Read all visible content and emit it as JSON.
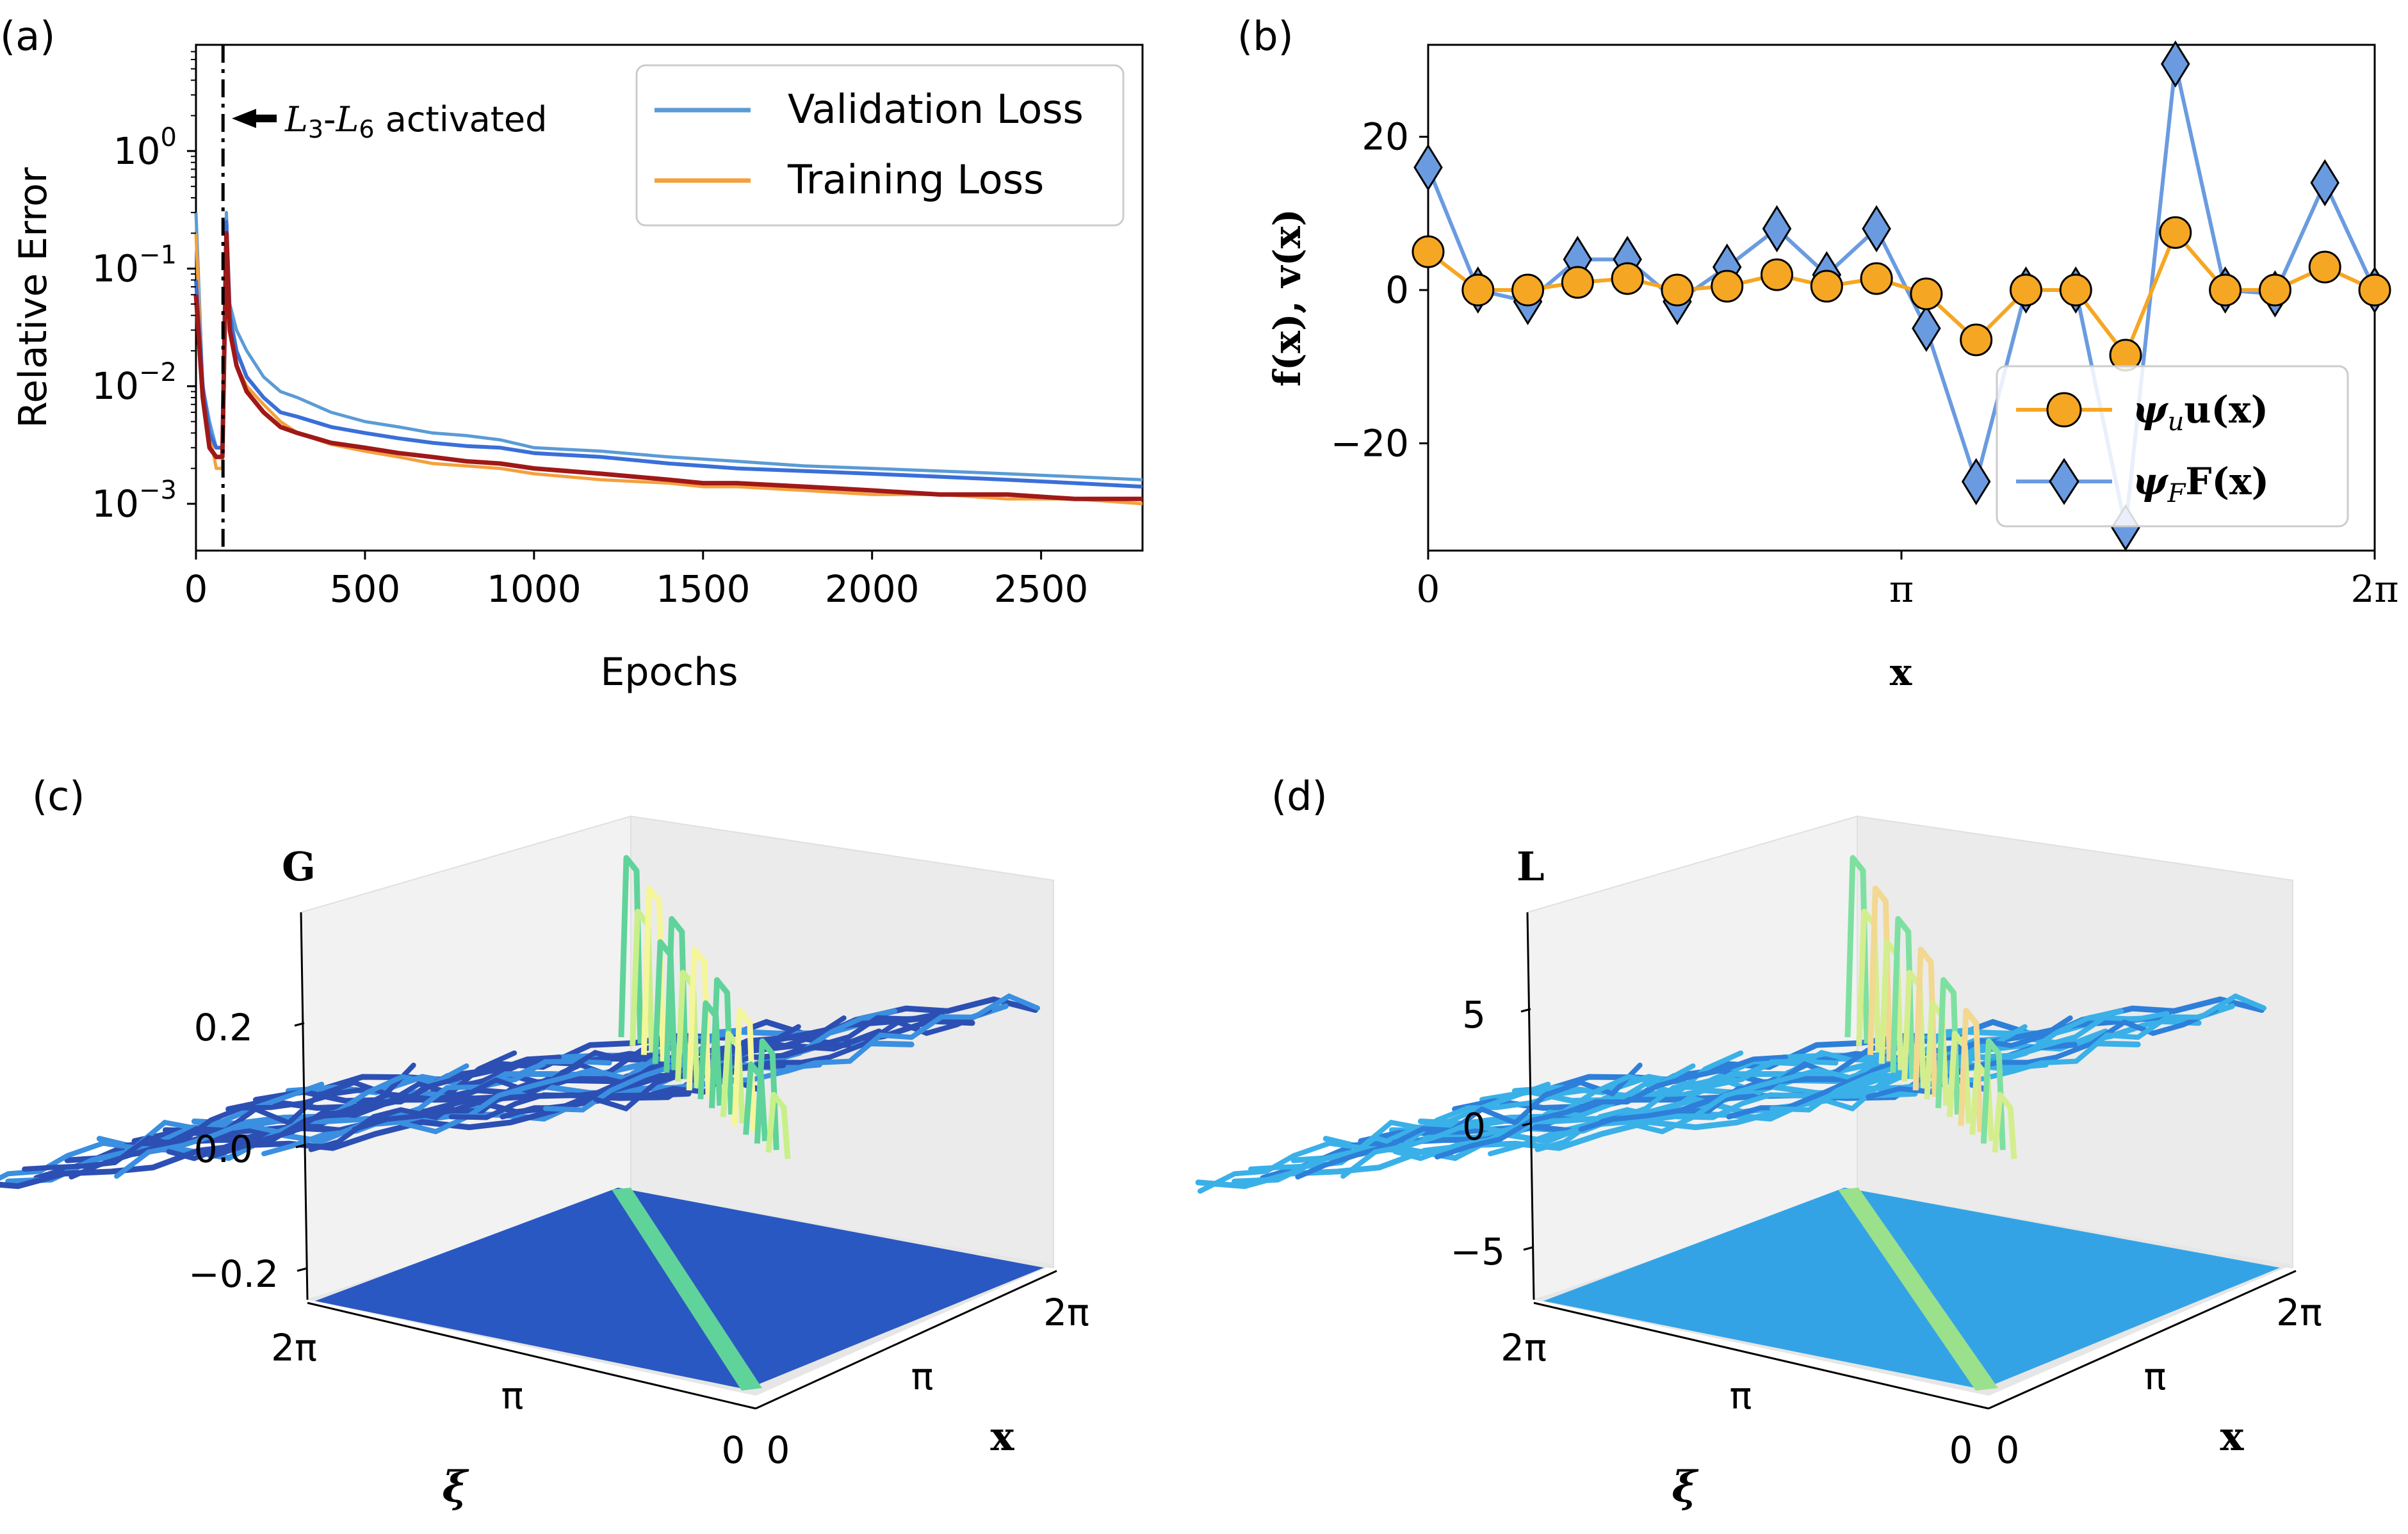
{
  "chart_data": [
    {
      "panel": "(a)",
      "type": "line",
      "xlabel": "Epochs",
      "ylabel": "Relative Error",
      "y_scale": "log",
      "xlim": [
        0,
        2800
      ],
      "ylim": [
        0.0004,
        8
      ],
      "x_ticks": [
        0,
        500,
        1000,
        1500,
        2000,
        2500
      ],
      "y_ticks": [
        {
          "value": 1,
          "label_base": "10",
          "label_exp": "0"
        },
        {
          "value": 0.1,
          "label_base": "10",
          "label_exp": "−1"
        },
        {
          "value": 0.01,
          "label_base": "10",
          "label_exp": "−2"
        },
        {
          "value": 0.001,
          "label_base": "10",
          "label_exp": "−3"
        }
      ],
      "legend_position": "top-right",
      "grid": false,
      "annotation": {
        "text_pre": "L",
        "sub1": "3",
        "dash": "-",
        "text_mid": "L",
        "sub2": "6",
        "text_post": " activated",
        "x": 80
      },
      "vline_x": 80,
      "series": [
        {
          "name": "Validation Loss",
          "color": "#5b9bd5",
          "x": [
            0,
            20,
            40,
            60,
            78,
            90,
            100,
            120,
            150,
            200,
            250,
            300,
            400,
            500,
            600,
            700,
            800,
            900,
            1000,
            1200,
            1400,
            1500,
            1600,
            1800,
            2000,
            2200,
            2400,
            2600,
            2800
          ],
          "values": [
            0.3,
            0.01,
            0.005,
            0.003,
            0.003,
            0.3,
            0.05,
            0.03,
            0.02,
            0.012,
            0.009,
            0.008,
            0.006,
            0.005,
            0.0045,
            0.004,
            0.0038,
            0.0035,
            0.003,
            0.0028,
            0.0025,
            0.0024,
            0.0023,
            0.0021,
            0.002,
            0.0019,
            0.0018,
            0.0017,
            0.0016
          ]
        },
        {
          "name": "Training Loss",
          "color": "#f5a03c",
          "x": [
            0,
            20,
            40,
            60,
            78,
            90,
            100,
            120,
            150,
            200,
            250,
            300,
            400,
            500,
            600,
            700,
            800,
            900,
            1000,
            1200,
            1400,
            1500,
            1600,
            1800,
            2000,
            2200,
            2400,
            2600,
            2800
          ],
          "values": [
            0.2,
            0.008,
            0.004,
            0.002,
            0.002,
            0.2,
            0.03,
            0.015,
            0.01,
            0.007,
            0.005,
            0.004,
            0.0032,
            0.0028,
            0.0025,
            0.0022,
            0.0021,
            0.002,
            0.0018,
            0.0016,
            0.0015,
            0.0014,
            0.0014,
            0.0013,
            0.0012,
            0.0012,
            0.0011,
            0.0011,
            0.001
          ]
        },
        {
          "color": "#3a6fd8",
          "x": [
            0,
            20,
            40,
            60,
            78,
            90,
            100,
            120,
            150,
            200,
            250,
            300,
            400,
            500,
            600,
            700,
            800,
            900,
            1000,
            1200,
            1400,
            1500,
            1600,
            1800,
            2000,
            2200,
            2400,
            2600,
            2800
          ],
          "values": [
            0.08,
            0.01,
            0.004,
            0.003,
            0.003,
            0.25,
            0.04,
            0.02,
            0.012,
            0.008,
            0.006,
            0.0055,
            0.0045,
            0.004,
            0.0036,
            0.0033,
            0.0031,
            0.003,
            0.0027,
            0.0025,
            0.0022,
            0.0021,
            0.002,
            0.0019,
            0.0018,
            0.0017,
            0.0016,
            0.0015,
            0.0014
          ]
        },
        {
          "color": "#a01818",
          "x": [
            0,
            20,
            40,
            60,
            78,
            90,
            100,
            120,
            150,
            200,
            250,
            300,
            400,
            500,
            600,
            700,
            800,
            900,
            1000,
            1200,
            1400,
            1500,
            1600,
            1800,
            2000,
            2200,
            2400,
            2600,
            2800
          ],
          "values": [
            0.06,
            0.008,
            0.003,
            0.0025,
            0.0025,
            0.2,
            0.03,
            0.015,
            0.009,
            0.006,
            0.0045,
            0.004,
            0.0033,
            0.003,
            0.0027,
            0.0025,
            0.0023,
            0.0022,
            0.002,
            0.0018,
            0.0016,
            0.0015,
            0.0015,
            0.0014,
            0.0013,
            0.0012,
            0.0012,
            0.0011,
            0.0011
          ]
        }
      ]
    },
    {
      "panel": "(b)",
      "type": "line",
      "xlabel": "x",
      "ylabel": "f(x), v(x)",
      "xlim": [
        0,
        6.2832
      ],
      "ylim": [
        -34,
        32
      ],
      "x_ticks": [
        {
          "value": 0,
          "label": "0"
        },
        {
          "value": 3.1416,
          "label": "π"
        },
        {
          "value": 6.2832,
          "label": "2π"
        }
      ],
      "y_ticks": [
        {
          "value": 20,
          "label": "20"
        },
        {
          "value": 0,
          "label": "0"
        },
        {
          "value": -20,
          "label": "−20"
        }
      ],
      "legend_position": "bottom-right",
      "grid": false,
      "x": [
        0,
        0.3307,
        0.6614,
        0.9921,
        1.3228,
        1.6535,
        1.9842,
        2.3149,
        2.6456,
        2.9762,
        3.3069,
        3.6376,
        3.9683,
        4.299,
        4.6297,
        4.9604,
        5.2911,
        5.6218,
        5.9525,
        6.2832
      ],
      "series": [
        {
          "name_sym": "ψ",
          "name_sub": "u",
          "name_tail": "u(x)",
          "color": "#f5a623",
          "marker": "circle",
          "values": [
            5,
            0,
            0,
            1,
            1.5,
            0,
            0.5,
            2,
            0.5,
            1.5,
            -0.5,
            -6.5,
            0,
            0,
            -8.5,
            7.5,
            0,
            0,
            3,
            0
          ]
        },
        {
          "name_sym": "ψ",
          "name_sub": "F",
          "name_tail": "F(x)",
          "color": "#6a9be0",
          "marker": "diamond",
          "values": [
            16,
            0,
            -1.5,
            4,
            4,
            -1.5,
            3,
            8,
            2,
            8,
            -5,
            -25,
            0,
            0,
            -31,
            29.5,
            0,
            -0.5,
            14,
            0
          ]
        }
      ]
    },
    {
      "panel": "(c)",
      "type": "surface",
      "zlabel": "G",
      "xlabel": "x",
      "ylabel": "ξ",
      "z_ticks": [
        "0.2",
        "0.0",
        "−0.2"
      ],
      "x_ticks": [
        "0",
        "π",
        "2π"
      ],
      "y_ticks": [
        "2π",
        "π",
        "0"
      ],
      "colormap": [
        "#2c4fb4",
        "#3a8fe0",
        "#5fd39a",
        "#c7f08a",
        "#f5f59a"
      ]
    },
    {
      "panel": "(d)",
      "type": "surface",
      "zlabel": "L",
      "xlabel": "x",
      "ylabel": "ξ",
      "z_ticks": [
        "5",
        "0",
        "−5"
      ],
      "x_ticks": [
        "0",
        "π",
        "2π"
      ],
      "y_ticks": [
        "2π",
        "π",
        "0"
      ],
      "colormap": [
        "#2d7fd9",
        "#3ab0e8",
        "#7ee0a0",
        "#d4ee8e",
        "#f2d890"
      ]
    }
  ],
  "panel_labels": [
    "(a)",
    "(b)",
    "(c)",
    "(d)"
  ]
}
